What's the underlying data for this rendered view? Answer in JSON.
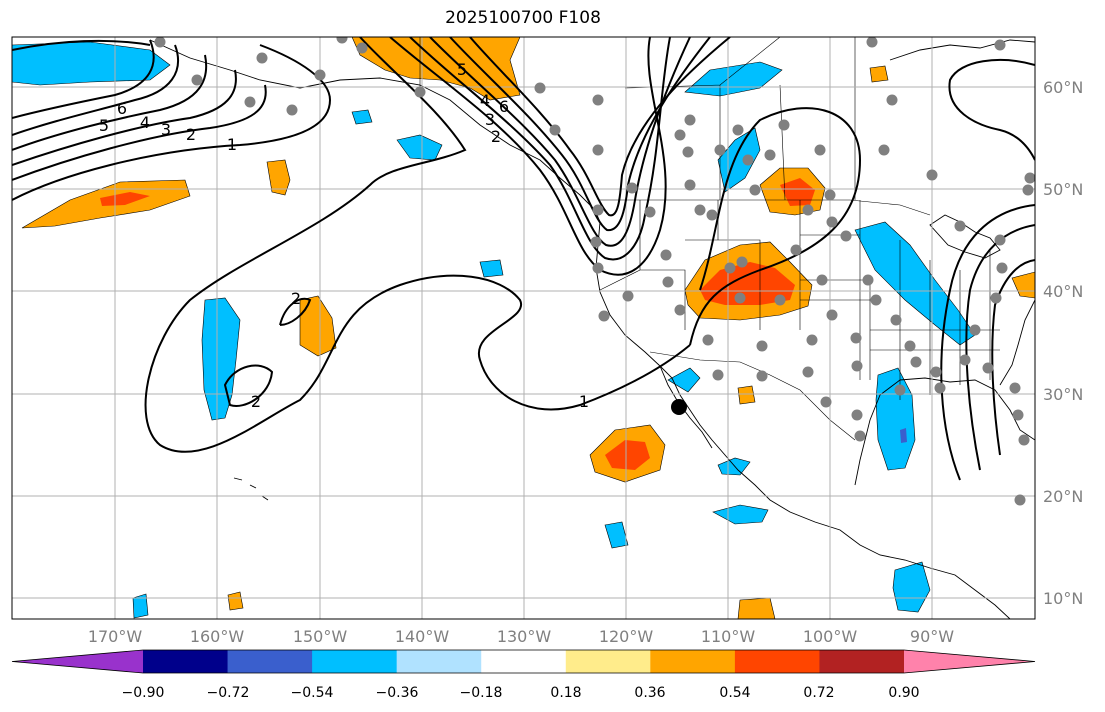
{
  "title": "2025100700 F108",
  "map": {
    "longitude_labels": [
      "170°W",
      "160°W",
      "150°W",
      "140°W",
      "130°W",
      "120°W",
      "110°W",
      "100°W",
      "90°W"
    ],
    "latitude_labels": [
      "60°N",
      "50°N",
      "40°N",
      "30°N",
      "20°N",
      "10°N"
    ],
    "contour_labels": [
      "6",
      "5",
      "4",
      "3",
      "2",
      "1",
      "2",
      "2",
      "1",
      "6",
      "5",
      "4",
      "3",
      "2"
    ],
    "gridlines": true
  },
  "colorbar": {
    "tick_labels": [
      "−0.90",
      "−0.72",
      "−0.54",
      "−0.36",
      "−0.18",
      "0.18",
      "0.36",
      "0.54",
      "0.72",
      "0.90"
    ],
    "colors": [
      "#9932cc",
      "#00008b",
      "#3a5fcd",
      "#00bfff",
      "#b0e2ff",
      "#ffffff",
      "#ffec8b",
      "#ffa500",
      "#ff4500",
      "#b22222",
      "#ff82ab"
    ]
  },
  "colors": {
    "positive_light": "#ffa500",
    "positive_strong": "#ff4500",
    "negative_light": "#00bfff",
    "negative_strong": "#3a5fcd",
    "station_dot": "#808080",
    "grid": "#b0b0b0"
  }
}
